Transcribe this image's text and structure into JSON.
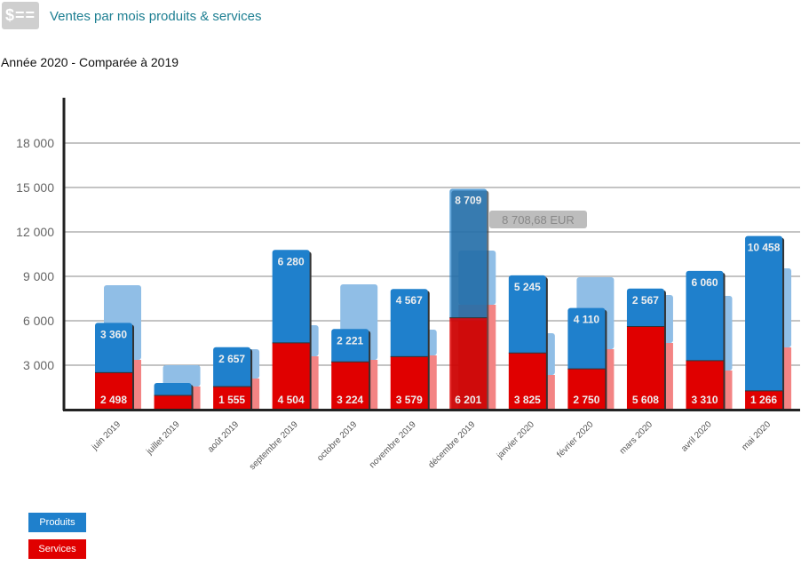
{
  "header": {
    "icon": "dollar-bill-icon",
    "icon_text": "$==",
    "title": "Ventes par mois produits & services"
  },
  "subtitle": "Année 2020 - Comparée à 2019",
  "tooltip": "8 708,68 EUR",
  "colors": {
    "produits": "#1f80cc",
    "services": "#e00000",
    "produits_prev": "#90bee6",
    "services_prev": "#f38484"
  },
  "chart_data": {
    "type": "bar",
    "title": "Ventes par mois produits & services",
    "ylim": [
      0,
      20000
    ],
    "yticks": [
      3000,
      6000,
      9000,
      12000,
      15000,
      18000
    ],
    "ytick_labels": [
      "3 000",
      "6 000",
      "9 000",
      "12 000",
      "15 000",
      "18 000"
    ],
    "categories": [
      "juin 2019",
      "juillet 2019",
      "août 2019",
      "septembre 2019",
      "octobre 2019",
      "novembre 2019",
      "décembre 2019",
      "janvier 2020",
      "février 2020",
      "mars 2020",
      "avril 2020",
      "mai 2020"
    ],
    "series": [
      {
        "name": "Services",
        "values": [
          2498,
          960,
          1555,
          4504,
          3224,
          3579,
          6201,
          3825,
          2750,
          5608,
          3310,
          1266
        ],
        "labels": [
          "2 498",
          "",
          "1 555",
          "4 504",
          "3 224",
          "3 579",
          "6 201",
          "3 825",
          "2 750",
          "5 608",
          "3 310",
          "1 266"
        ]
      },
      {
        "name": "Produits",
        "values": [
          3360,
          840,
          2657,
          6280,
          2221,
          4567,
          8709,
          5245,
          4110,
          2567,
          6060,
          10458
        ],
        "labels": [
          "3 360",
          "",
          "2 657",
          "6 280",
          "2 221",
          "4 567",
          "8 709",
          "5 245",
          "4 110",
          "2 567",
          "6 060",
          "10 458"
        ]
      }
    ],
    "previous_year": {
      "services": [
        3360,
        1560,
        2100,
        3600,
        3360,
        3660,
        7080,
        2340,
        4080,
        4500,
        2640,
        4200
      ],
      "totals": [
        8400,
        3000,
        4080,
        5700,
        8460,
        5400,
        10740,
        5160,
        8940,
        7740,
        7680,
        9540
      ]
    },
    "legend": [
      "Produits",
      "Services"
    ]
  }
}
